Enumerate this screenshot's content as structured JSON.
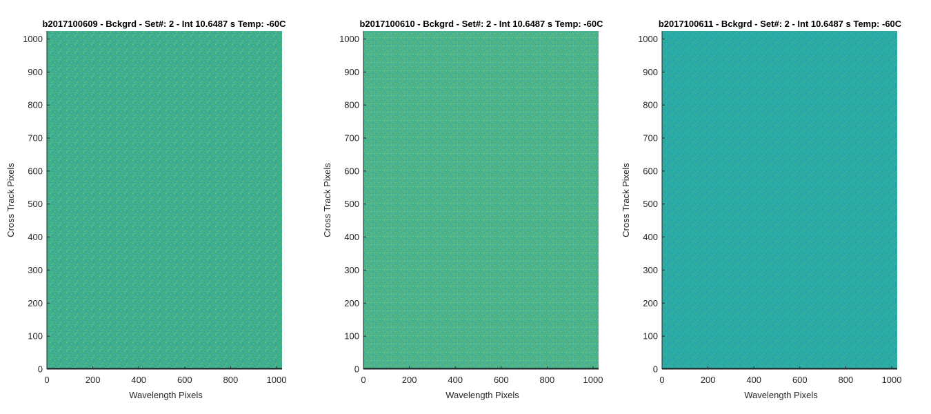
{
  "chart_data": [
    {
      "type": "heatmap",
      "title": "b2017100609 - Bckgrd - Set#: 2 - Int 10.6487 s Temp: -60C",
      "xlabel": "Wavelength Pixels",
      "ylabel": "Cross Track Pixels",
      "xlim": [
        0,
        1024
      ],
      "ylim": [
        0,
        1024
      ],
      "xticks": [
        0,
        200,
        400,
        600,
        800,
        1000
      ],
      "yticks": [
        0,
        100,
        200,
        300,
        400,
        500,
        600,
        700,
        800,
        900,
        1000
      ],
      "base_color": "#3fae8e",
      "noise_colors": [
        "#2aa5a0",
        "#56b882",
        "#78c16c",
        "#30a99a"
      ],
      "bottom_row_color": "#1f3d3a"
    },
    {
      "type": "heatmap",
      "title": "b2017100610 - Bckgrd - Set#: 2 - Int 10.6487 s Temp: -60C",
      "xlabel": "Wavelength Pixels",
      "ylabel": "Cross Track Pixels",
      "xlim": [
        0,
        1024
      ],
      "ylim": [
        0,
        1024
      ],
      "xticks": [
        0,
        200,
        400,
        600,
        800,
        1000
      ],
      "yticks": [
        0,
        100,
        200,
        300,
        400,
        500,
        600,
        700,
        800,
        900,
        1000
      ],
      "base_color": "#4db38a",
      "noise_colors": [
        "#2ca79e",
        "#62bb7c",
        "#86c465",
        "#37ab95"
      ],
      "bottom_row_color": "#1f3d3a"
    },
    {
      "type": "heatmap",
      "title": "b2017100611 - Bckgrd - Set#: 2 - Int 10.6487 s Temp: -60C",
      "xlabel": "Wavelength Pixels",
      "ylabel": "Cross Track Pixels",
      "xlim": [
        0,
        1024
      ],
      "ylim": [
        0,
        1024
      ],
      "xticks": [
        0,
        200,
        400,
        600,
        800,
        1000
      ],
      "yticks": [
        0,
        100,
        200,
        300,
        400,
        500,
        600,
        700,
        800,
        900,
        1000
      ],
      "base_color": "#2aaaa6",
      "noise_colors": [
        "#1f9fb0",
        "#38b19c",
        "#23a5aa",
        "#4ab68f"
      ],
      "bottom_row_color": "#1f3d3a"
    }
  ]
}
